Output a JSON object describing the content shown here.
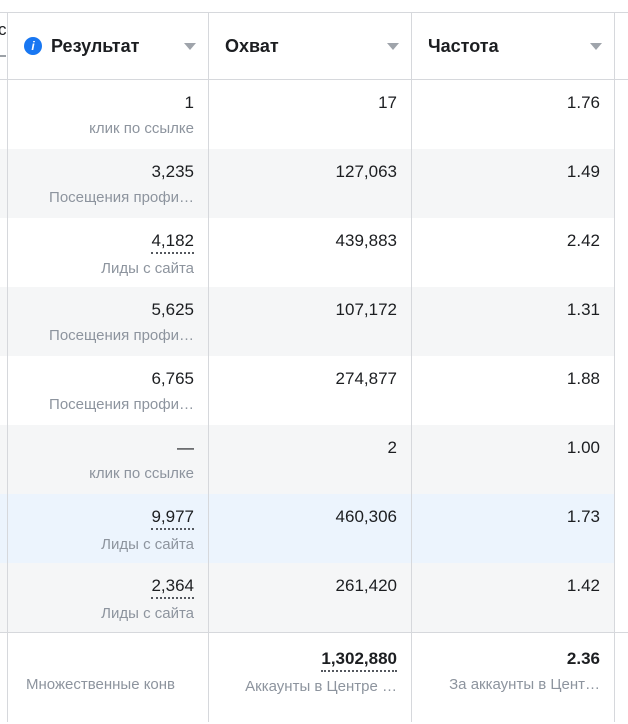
{
  "header": {
    "columns": [
      {
        "label": "Результат",
        "has_info_icon": true
      },
      {
        "label": "Охват",
        "has_info_icon": false
      },
      {
        "label": "Частота",
        "has_info_icon": false
      }
    ],
    "clipped_left_column_fragment": "с"
  },
  "rows": [
    {
      "result": "1",
      "result_label": "клик по ссылке",
      "reach": "17",
      "frequency": "1.76",
      "bg": "white",
      "underline": false
    },
    {
      "result": "3,235",
      "result_label": "Посещения профи…",
      "reach": "127,063",
      "frequency": "1.49",
      "bg": "gray",
      "underline": false
    },
    {
      "result": "4,182",
      "result_label": "Лиды с сайта",
      "reach": "439,883",
      "frequency": "2.42",
      "bg": "white",
      "underline": true
    },
    {
      "result": "5,625",
      "result_label": "Посещения профи…",
      "reach": "107,172",
      "frequency": "1.31",
      "bg": "gray",
      "underline": false
    },
    {
      "result": "6,765",
      "result_label": "Посещения профи…",
      "reach": "274,877",
      "frequency": "1.88",
      "bg": "white",
      "underline": false
    },
    {
      "result": "—",
      "result_label": "клик по ссылке",
      "reach": "2",
      "frequency": "1.00",
      "bg": "gray",
      "underline": false
    },
    {
      "result": "9,977",
      "result_label": "Лиды с сайта",
      "reach": "460,306",
      "frequency": "1.73",
      "bg": "blue",
      "underline": true
    },
    {
      "result": "2,364",
      "result_label": "Лиды с сайта",
      "reach": "261,420",
      "frequency": "1.42",
      "bg": "gray",
      "underline": true
    }
  ],
  "footer": {
    "result_value": "",
    "result_label": "Множественные конв",
    "reach_total": "1,302,880",
    "reach_label": "Аккаунты в Центре …",
    "frequency_total": "2.36",
    "frequency_label": "За аккаунты в Цент…"
  },
  "colors": {
    "accent_blue": "#1877f2",
    "zebra_row": "#f5f6f7",
    "highlighted_row": "#ecf4fd",
    "border": "#d6d8dc",
    "primary_text": "#1c1e21",
    "secondary_text": "#8d949e"
  }
}
